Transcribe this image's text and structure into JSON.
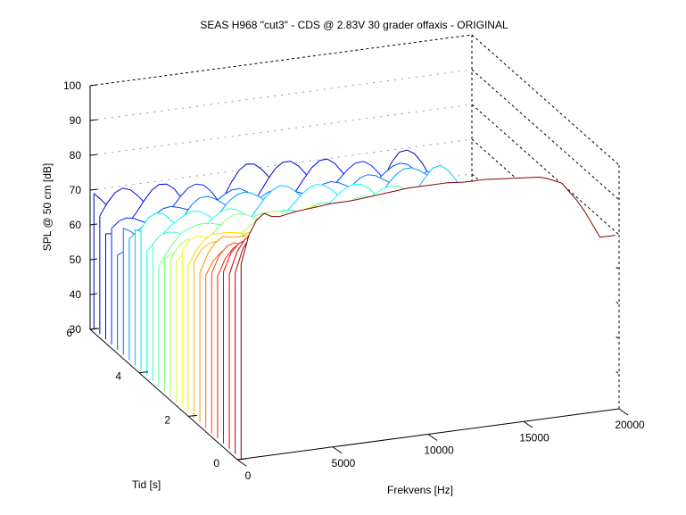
{
  "chart_data": {
    "type": "waterfall-3d",
    "title": "SEAS H968 \"cut3\" - CDS @ 2.83V 30 grader offaxis - ORIGINAL",
    "xlabel": "Frekvens [Hz]",
    "ylabel": "Tid [s]",
    "zlabel": "SPL @ 50 cm [dB]",
    "xlim": [
      0,
      20000
    ],
    "ylim": [
      0,
      6
    ],
    "zlim": [
      30,
      100
    ],
    "x_ticks": [
      "0",
      "5000",
      "10000",
      "15000",
      "20000"
    ],
    "y_ticks": [
      "0",
      "2",
      "4",
      "6"
    ],
    "z_ticks": [
      "30",
      "40",
      "50",
      "60",
      "70",
      "80",
      "90",
      "100"
    ],
    "colormap": "jet",
    "grid": false,
    "slice_count": 26,
    "frequency_response_first_slice": {
      "x": [
        200,
        700,
        1300,
        2000,
        3000,
        4000,
        5000,
        6000,
        7000,
        8000,
        9000,
        10000,
        11000,
        12000,
        13000,
        14000,
        15000,
        16000,
        17000,
        18000,
        19000
      ],
      "spl": [
        86,
        96,
        100,
        98,
        99,
        99.5,
        100,
        100,
        100.5,
        101,
        101.5,
        101.5,
        101.5,
        101,
        101,
        100.5,
        100,
        99.5,
        97,
        90,
        80
      ]
    },
    "decay_floor_last_slice": {
      "x": [
        2000,
        4000,
        6000,
        8000,
        10000,
        12000,
        14000,
        16000,
        18000,
        19500
      ],
      "spl": [
        62,
        64,
        63,
        64,
        63.5,
        64,
        63.5,
        65,
        56,
        44
      ]
    }
  }
}
